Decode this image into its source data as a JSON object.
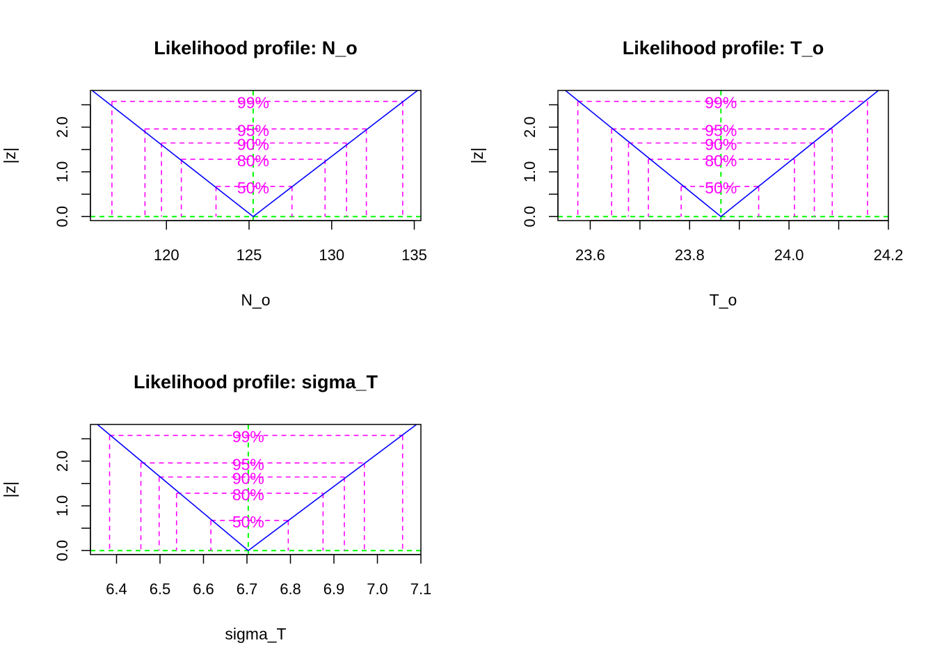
{
  "chart_data": [
    {
      "type": "line",
      "title": "Likelihood profile: N_o",
      "xlabel": "N_o",
      "ylabel": "|z|",
      "xlim": [
        115.4,
        135.4
      ],
      "ylim": [
        -0.09,
        2.82
      ],
      "x_ticks": [
        120,
        125,
        130,
        135
      ],
      "y_ticks": [
        0.0,
        1.0,
        2.0
      ],
      "y_tick_labels": [
        "0.0",
        "1.0",
        "2.0"
      ],
      "y_minor_ticks": [
        0.5,
        1.5,
        2.5
      ],
      "series": [
        {
          "x": [
            115.5,
            125.25,
            135.2
          ],
          "y": [
            2.82,
            0.0,
            2.82
          ]
        }
      ],
      "mle": 125.25,
      "levels": [
        {
          "label": "50%",
          "z": 0.674,
          "lower": 123.0,
          "upper": 127.6
        },
        {
          "label": "80%",
          "z": 1.282,
          "lower": 120.9,
          "upper": 129.6
        },
        {
          "label": "90%",
          "z": 1.645,
          "lower": 119.7,
          "upper": 130.9
        },
        {
          "label": "95%",
          "z": 1.96,
          "lower": 118.7,
          "upper": 132.1
        },
        {
          "label": "99%",
          "z": 2.576,
          "lower": 116.7,
          "upper": 134.3
        }
      ],
      "colors": {
        "profile": "#0000ff",
        "levels": "#ff00ff",
        "mle": "#00ff00"
      }
    },
    {
      "type": "line",
      "title": "Likelihood profile: T_o",
      "xlabel": "T_o",
      "ylabel": "|z|",
      "xlim": [
        23.535,
        24.2
      ],
      "ylim": [
        -0.09,
        2.82
      ],
      "x_ticks": [
        23.6,
        23.8,
        24.0,
        24.2
      ],
      "x_tick_labels": [
        "23.6",
        "23.8",
        "24.0",
        "24.2"
      ],
      "x_minor_ticks": [
        23.7,
        23.9,
        24.1
      ],
      "y_ticks": [
        0.0,
        1.0,
        2.0
      ],
      "y_tick_labels": [
        "0.0",
        "1.0",
        "2.0"
      ],
      "y_minor_ticks": [
        0.5,
        1.5,
        2.5
      ],
      "series": [
        {
          "x": [
            23.55,
            23.863,
            24.18
          ],
          "y": [
            2.82,
            0.0,
            2.82
          ]
        }
      ],
      "mle": 23.863,
      "levels": [
        {
          "label": "50%",
          "z": 0.674,
          "lower": 23.783,
          "upper": 23.939
        },
        {
          "label": "80%",
          "z": 1.282,
          "lower": 23.717,
          "upper": 24.011
        },
        {
          "label": "90%",
          "z": 1.645,
          "lower": 23.677,
          "upper": 24.051
        },
        {
          "label": "95%",
          "z": 1.96,
          "lower": 23.643,
          "upper": 24.087
        },
        {
          "label": "99%",
          "z": 2.576,
          "lower": 23.575,
          "upper": 24.158
        }
      ],
      "colors": {
        "profile": "#0000ff",
        "levels": "#ff00ff",
        "mle": "#00ff00"
      }
    },
    {
      "type": "line",
      "title": "Likelihood profile: sigma_T",
      "xlabel": "sigma_T",
      "ylabel": "|z|",
      "xlim": [
        6.34,
        7.1
      ],
      "ylim": [
        -0.09,
        2.82
      ],
      "x_ticks": [
        6.4,
        6.5,
        6.6,
        6.7,
        6.8,
        6.9,
        7.0,
        7.1
      ],
      "x_tick_labels": [
        "6.4",
        "6.5",
        "6.6",
        "6.7",
        "6.8",
        "6.9",
        "7.0",
        "7.1"
      ],
      "y_ticks": [
        0.0,
        1.0,
        2.0
      ],
      "y_tick_labels": [
        "0.0",
        "1.0",
        "2.0"
      ],
      "y_minor_ticks": [
        0.5,
        1.5,
        2.5
      ],
      "series": [
        {
          "x": [
            6.356,
            6.703,
            7.09
          ],
          "y": [
            2.82,
            0.0,
            2.82
          ]
        }
      ],
      "mle": 6.703,
      "levels": [
        {
          "label": "50%",
          "z": 0.674,
          "lower": 6.617,
          "upper": 6.795
        },
        {
          "label": "80%",
          "z": 1.282,
          "lower": 6.538,
          "upper": 6.875
        },
        {
          "label": "90%",
          "z": 1.645,
          "lower": 6.498,
          "upper": 6.924
        },
        {
          "label": "95%",
          "z": 1.96,
          "lower": 6.456,
          "upper": 6.97
        },
        {
          "label": "99%",
          "z": 2.576,
          "lower": 6.384,
          "upper": 7.058
        }
      ],
      "colors": {
        "profile": "#0000ff",
        "levels": "#ff00ff",
        "mle": "#00ff00"
      }
    }
  ]
}
